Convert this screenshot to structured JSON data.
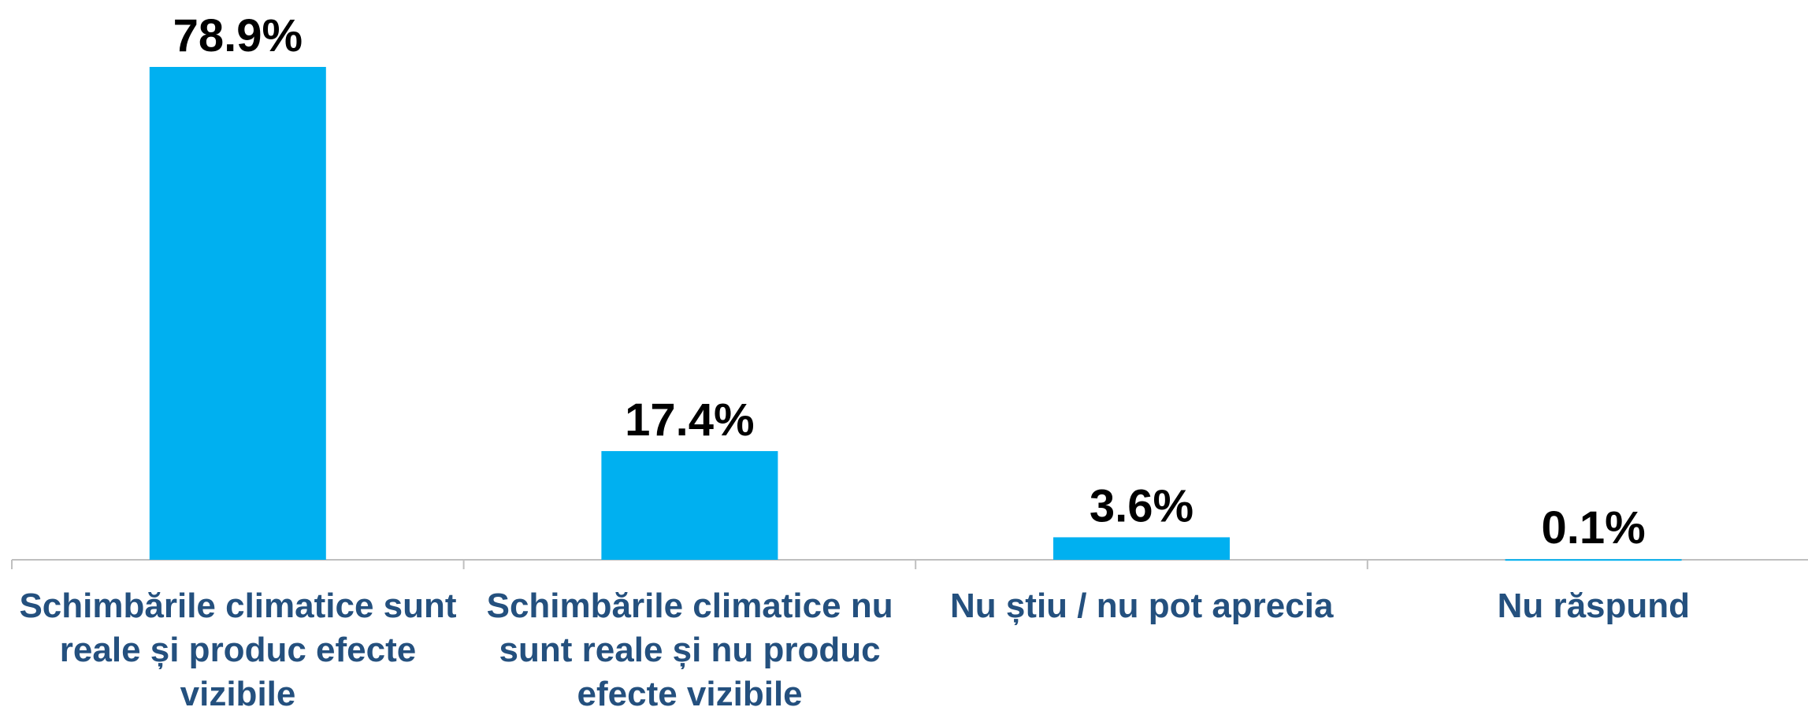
{
  "chart_data": {
    "type": "bar",
    "categories": [
      "Schimbările climatice sunt reale și produc efecte vizibile",
      "Schimbările climatice nu sunt reale și nu produc efecte vizibile",
      "Nu știu / nu pot aprecia",
      "Nu răspund"
    ],
    "values": [
      78.9,
      17.4,
      3.6,
      0.1
    ],
    "value_labels": [
      "78.9%",
      "17.4%",
      "3.6%",
      "0.1%"
    ],
    "color": "#00b0f0"
  }
}
